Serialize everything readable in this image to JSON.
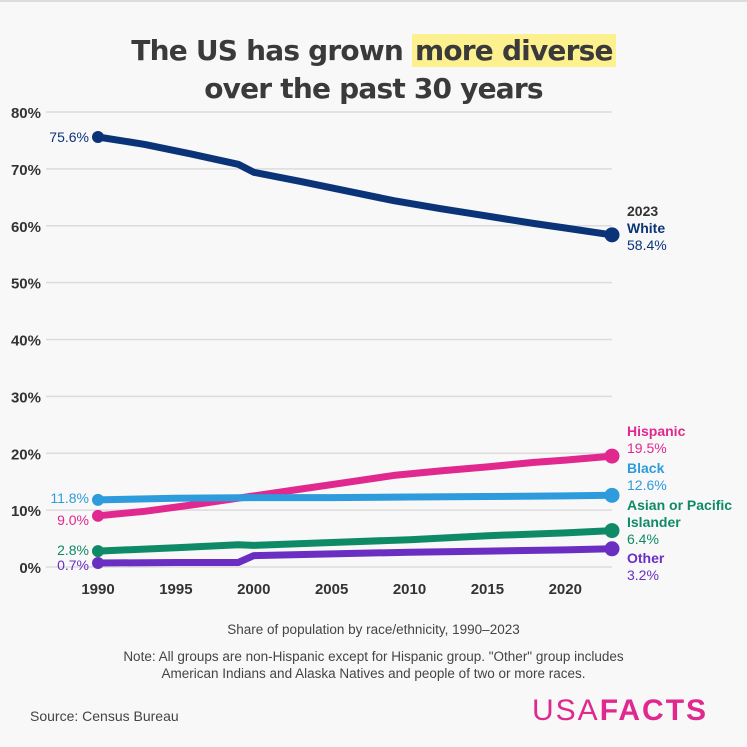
{
  "title": {
    "part1": "The US has grown ",
    "highlight": "more diverse",
    "line2": "over the past 30 years"
  },
  "subtitle": "Share of population by race/ethnicity, 1990–2023",
  "note": "Note: All groups are non-Hispanic except for Hispanic group. \"Other\" group includes American Indians and Alaska Natives and people of two or more races.",
  "source": "Source: Census Bureau",
  "logo": {
    "light": "USA",
    "bold": "FACTS",
    "color": "#e0288f"
  },
  "end_year_label": "2023",
  "chart_data": {
    "type": "line",
    "title": "The US has grown more diverse over the past 30 years",
    "xlabel": "",
    "ylabel": "",
    "xlim": [
      1990,
      2023
    ],
    "ylim": [
      0,
      80
    ],
    "grid": true,
    "yticks": [
      0,
      10,
      20,
      30,
      40,
      50,
      60,
      70,
      80
    ],
    "ytick_labels": [
      "0%",
      "10%",
      "20%",
      "30%",
      "40%",
      "50%",
      "60%",
      "70%",
      "80%"
    ],
    "xticks": [
      1990,
      1995,
      2000,
      2005,
      2010,
      2015,
      2020
    ],
    "xtick_labels": [
      "1990",
      "1995",
      "2000",
      "2005",
      "2010",
      "2015",
      "2020"
    ],
    "series": [
      {
        "name": "White",
        "color": "#0b3478",
        "start_label": "75.6%",
        "end_label": "58.4%",
        "points": [
          [
            1990,
            75.6
          ],
          [
            1993,
            74.3
          ],
          [
            1996,
            72.6
          ],
          [
            1999,
            70.8
          ],
          [
            2000,
            69.4
          ],
          [
            2003,
            67.8
          ],
          [
            2006,
            66.1
          ],
          [
            2009,
            64.4
          ],
          [
            2012,
            63.0
          ],
          [
            2015,
            61.7
          ],
          [
            2018,
            60.4
          ],
          [
            2020,
            59.6
          ],
          [
            2023,
            58.4
          ]
        ]
      },
      {
        "name": "Hispanic",
        "color": "#e0288f",
        "start_label": "9.0%",
        "end_label": "19.5%",
        "points": [
          [
            1990,
            9.0
          ],
          [
            1993,
            9.8
          ],
          [
            1996,
            10.9
          ],
          [
            1999,
            12.1
          ],
          [
            2000,
            12.5
          ],
          [
            2003,
            13.7
          ],
          [
            2006,
            14.9
          ],
          [
            2009,
            16.1
          ],
          [
            2012,
            16.9
          ],
          [
            2015,
            17.6
          ],
          [
            2018,
            18.4
          ],
          [
            2020,
            18.8
          ],
          [
            2023,
            19.5
          ]
        ]
      },
      {
        "name": "Black",
        "color": "#2e9bdc",
        "start_label": "11.8%",
        "end_label": "12.6%",
        "points": [
          [
            1990,
            11.8
          ],
          [
            1995,
            12.1
          ],
          [
            2000,
            12.2
          ],
          [
            2005,
            12.2
          ],
          [
            2010,
            12.3
          ],
          [
            2015,
            12.4
          ],
          [
            2020,
            12.5
          ],
          [
            2023,
            12.6
          ]
        ]
      },
      {
        "name": "Asian or Pacific Islander",
        "color": "#0f8a66",
        "start_label": "2.8%",
        "end_label": "6.4%",
        "points": [
          [
            1990,
            2.8
          ],
          [
            1995,
            3.4
          ],
          [
            1999,
            3.9
          ],
          [
            2000,
            3.8
          ],
          [
            2005,
            4.3
          ],
          [
            2010,
            4.8
          ],
          [
            2015,
            5.5
          ],
          [
            2020,
            6.0
          ],
          [
            2023,
            6.4
          ]
        ]
      },
      {
        "name": "Other",
        "color": "#6a2fc2",
        "start_label": "0.7%",
        "end_label": "3.2%",
        "points": [
          [
            1990,
            0.7
          ],
          [
            1995,
            0.8
          ],
          [
            1999,
            0.8
          ],
          [
            2000,
            2.0
          ],
          [
            2005,
            2.3
          ],
          [
            2010,
            2.6
          ],
          [
            2015,
            2.8
          ],
          [
            2020,
            3.0
          ],
          [
            2023,
            3.2
          ]
        ]
      }
    ]
  }
}
